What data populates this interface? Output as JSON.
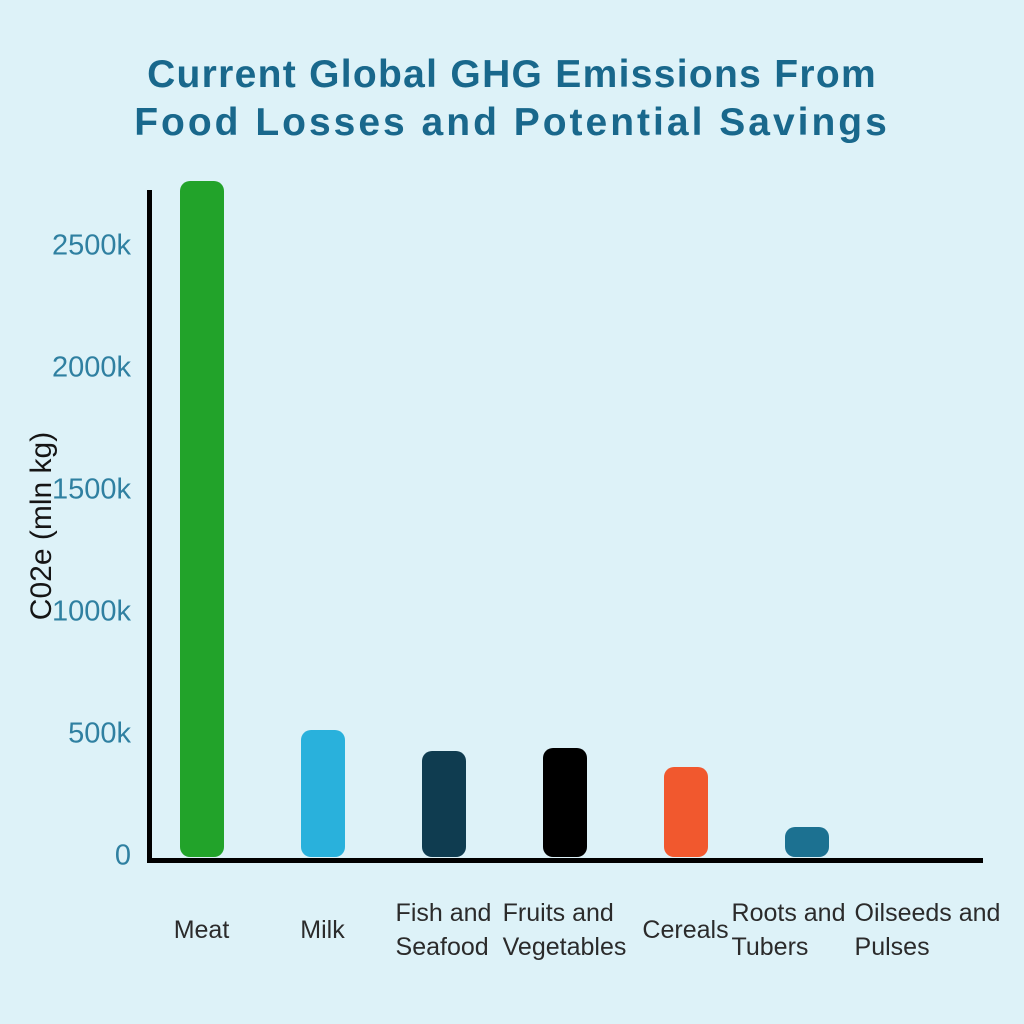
{
  "chart_data": {
    "type": "bar",
    "title": "Current Global GHG Emissions From Food Losses and Potential Savings",
    "title_lines": [
      "Current Global GHG Emissions From",
      "Food Losses and Potential Savings"
    ],
    "ylabel": "C02e (mln kg)",
    "categories": [
      "Meat",
      "Milk",
      "Fish and Seafood",
      "Fruits and Vegetables",
      "Cereals",
      "Roots and Tubers",
      "Oilseeds and Pulses"
    ],
    "category_lines": [
      [
        "Meat"
      ],
      [
        "Milk"
      ],
      [
        "Fish and",
        "Seafood"
      ],
      [
        "Fruits and",
        "Vegetables"
      ],
      [
        "Cereals"
      ],
      [
        "Roots and",
        "Tubers"
      ],
      [
        "Oilseeds and",
        "Pulses"
      ]
    ],
    "values_k": [
      2770,
      520,
      435,
      445,
      370,
      125,
      0
    ],
    "bar_colors": [
      "#22a32a",
      "#29b1dc",
      "#0f3c50",
      "#000000",
      "#f1582e",
      "#1c7191",
      "#1c7191"
    ],
    "yticks": [
      {
        "value": 0,
        "label": "0"
      },
      {
        "value": 500,
        "label": "500k"
      },
      {
        "value": 1000,
        "label": "1000k"
      },
      {
        "value": 1500,
        "label": "1500k"
      },
      {
        "value": 2000,
        "label": "2000k"
      },
      {
        "value": 2500,
        "label": "2500k"
      }
    ],
    "ylim_k": [
      0,
      2800
    ],
    "grid": false,
    "legend": false,
    "colors": {
      "background": "#ddf2f8",
      "title": "#19688c",
      "tick_label": "#2f80a1",
      "category_label": "#2b2b2b",
      "axis": "#000000"
    }
  }
}
